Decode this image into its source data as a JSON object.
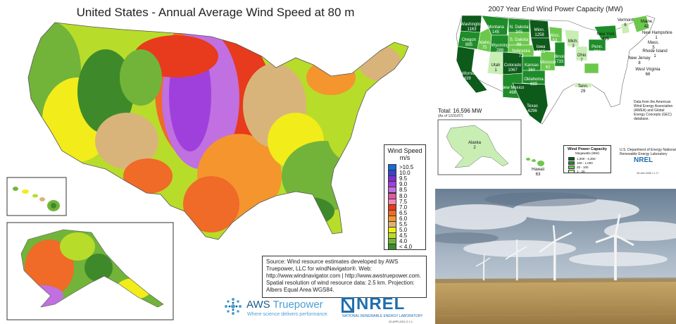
{
  "wind_map": {
    "title": "United States - Annual Average Wind Speed at 80 m",
    "legend": {
      "title": "Wind Speed",
      "unit": "m/s",
      "levels": [
        {
          "label": ">10.5",
          "color": "#1a6ad8"
        },
        {
          "label": "10.0",
          "color": "#3b42c9"
        },
        {
          "label": "9.5",
          "color": "#7a2fd0"
        },
        {
          "label": "9.0",
          "color": "#a040dc"
        },
        {
          "label": "8.5",
          "color": "#c070e0"
        },
        {
          "label": "8.0",
          "color": "#e05aa0"
        },
        {
          "label": "7.5",
          "color": "#f08cb4"
        },
        {
          "label": "7.0",
          "color": "#e83a1c"
        },
        {
          "label": "6.5",
          "color": "#f06a28"
        },
        {
          "label": "6.0",
          "color": "#f5952e"
        },
        {
          "label": "5.5",
          "color": "#d9b47a"
        },
        {
          "label": "5.0",
          "color": "#f2ec1a"
        },
        {
          "label": "4.5",
          "color": "#b8dc2a"
        },
        {
          "label": "4.0",
          "color": "#72b43a"
        },
        {
          "label": "< 4.0",
          "color": "#3e8a2a"
        }
      ]
    },
    "source": "Source: Wind resource estimates developed by AWS Truepower, LLC for windNavigator®. Web: http://www.windnavigator.com | http://www.awstruepower.com. Spatial resolution of wind resource data: 2.5 km. Projection: Albers Equal Area WGS84.",
    "aws": {
      "name_a": "AWS ",
      "name_b": "Truepower",
      "tagline": "Where science delivers performance."
    },
    "nrel": {
      "word": "NREL",
      "sub": "NATIONAL RENEWABLE ENERGY LABORATORY",
      "date": "20-APR-2011 2.1.1"
    }
  },
  "capacity_map": {
    "title": "2007 Year End Wind Power Capacity (MW)",
    "states": [
      {
        "name": "Washington",
        "value": "1163",
        "dark": false
      },
      {
        "name": "Oregon",
        "value": "885",
        "dark": false
      },
      {
        "name": "California",
        "value": "2439",
        "dark": false
      },
      {
        "name": "Montana",
        "value": "145",
        "dark": false
      },
      {
        "name": "Idaho",
        "value": "75",
        "dark": false
      },
      {
        "name": "Wyoming",
        "value": "288",
        "dark": false
      },
      {
        "name": "Utah",
        "value": "1",
        "dark": true
      },
      {
        "name": "Colorado",
        "value": "1067",
        "dark": false
      },
      {
        "name": "New Mexico",
        "value": "496",
        "dark": false
      },
      {
        "name": "N. Dakota",
        "value": "345",
        "dark": false
      },
      {
        "name": "S. Dakota",
        "value": "98",
        "dark": false
      },
      {
        "name": "Nebraska",
        "value": "72",
        "dark": false
      },
      {
        "name": "Kansas",
        "value": "364",
        "dark": false
      },
      {
        "name": "Oklahoma",
        "value": "689",
        "dark": false
      },
      {
        "name": "Texas",
        "value": "4296",
        "dark": false
      },
      {
        "name": "Minn.",
        "value": "1258",
        "dark": false
      },
      {
        "name": "Iowa",
        "value": "1115",
        "dark": false
      },
      {
        "name": "Missouri",
        "value": "62",
        "dark": false
      },
      {
        "name": "Wisc.",
        "value": "53",
        "dark": false
      },
      {
        "name": "Illinois",
        "value": "733",
        "dark": false
      },
      {
        "name": "Mich.",
        "value": "3",
        "dark": true
      },
      {
        "name": "Ohio",
        "value": "7",
        "dark": true
      },
      {
        "name": "Tenn.",
        "value": "29",
        "dark": true
      },
      {
        "name": "Penn.",
        "value": "294",
        "dark": false
      },
      {
        "name": "New York",
        "value": "425",
        "dark": true
      },
      {
        "name": "Vermont",
        "value": "6",
        "dark": true
      },
      {
        "name": "Maine",
        "value": "42",
        "dark": true
      },
      {
        "name": "New Hampshire",
        "value": "1",
        "dark": true
      },
      {
        "name": "Mass.",
        "value": "5",
        "dark": true
      },
      {
        "name": "Rhode Island",
        "value": "1",
        "dark": true
      },
      {
        "name": "New Jersey",
        "value": "8",
        "dark": true
      },
      {
        "name": "West Virginia",
        "value": "66",
        "dark": true
      },
      {
        "name": "Alaska",
        "value": "2",
        "dark": true
      },
      {
        "name": "Hawaii",
        "value": "63",
        "dark": true
      }
    ],
    "total": "Total: 16,596 MW",
    "as_of": "(As of 12/31/07)",
    "awea_note": "Data from the American Wind Energy Association (AWEA) and Global Energy Concepts (GEC) database.",
    "legend": {
      "title": "Wind Power Capacity",
      "sub": "Megawatts (MW)",
      "levels": [
        {
          "label": "1,000 - 4,300",
          "color": "#0d5a1a"
        },
        {
          "label": "100 - 1,000",
          "color": "#1f8c2a"
        },
        {
          "label": "20 - 100",
          "color": "#6cc84c"
        },
        {
          "label": "1 - 20",
          "color": "#c8eeb4"
        }
      ]
    },
    "doe": "U.S. Department of Energy National Renewable Energy Laboratory",
    "nrel": "NREL",
    "date": "28-JAN-2008 1.1.17"
  }
}
